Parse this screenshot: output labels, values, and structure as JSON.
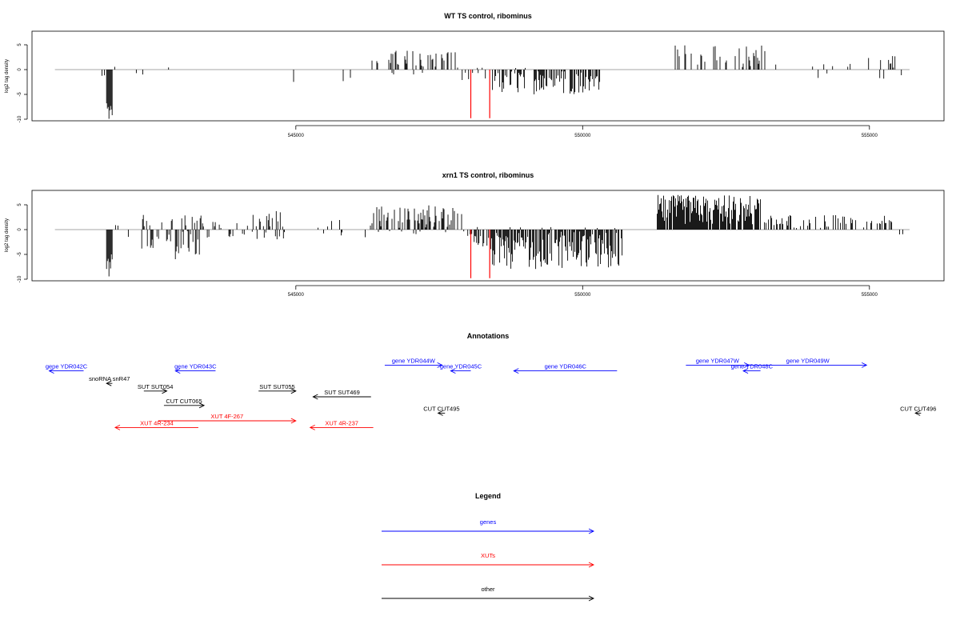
{
  "chart_data": [
    {
      "type": "bar",
      "title": "WT TS control, ribominus",
      "ylabel": "log2 tag density",
      "xlabel": "",
      "xlim": [
        540400,
        556300
      ],
      "ylim": [
        -10,
        8
      ],
      "x_ticks": [
        545000,
        550000,
        555000
      ],
      "x_tick_labels": [
        "545000",
        "550000",
        "555000"
      ],
      "y_ticks": [
        -10,
        -5,
        0,
        5
      ],
      "y_tick_labels": [
        "-10",
        "-5",
        "0",
        "5"
      ],
      "highlight_color": "#ff0000",
      "highlights": [
        {
          "x": 548050,
          "y": -9.8
        },
        {
          "x": 548380,
          "y": -9.8
        }
      ],
      "segments": [
        {
          "from": 540800,
          "to": 541300,
          "density": 0.02,
          "min": -2,
          "max": 0.5
        },
        {
          "from": 541300,
          "to": 541700,
          "density": 0.05,
          "min": -2,
          "max": 1
        },
        {
          "from": 541700,
          "to": 541800,
          "density": 1.0,
          "min": -10,
          "max": -6
        },
        {
          "from": 541800,
          "to": 542600,
          "density": 0.03,
          "min": -2,
          "max": 2
        },
        {
          "from": 542600,
          "to": 544500,
          "density": 0.02,
          "min": -2,
          "max": 2
        },
        {
          "from": 544500,
          "to": 546300,
          "density": 0.02,
          "min": -3,
          "max": 2
        },
        {
          "from": 546300,
          "to": 547900,
          "density": 0.35,
          "min": -1,
          "max": 4
        },
        {
          "from": 547900,
          "to": 548400,
          "density": 0.3,
          "min": -3,
          "max": 0.5
        },
        {
          "from": 548400,
          "to": 550300,
          "density": 0.55,
          "min": -5,
          "max": 0.5
        },
        {
          "from": 550300,
          "to": 551300,
          "density": 0.01,
          "min": -1,
          "max": 1
        },
        {
          "from": 551300,
          "to": 551600,
          "density": 0.03,
          "min": 0,
          "max": 2
        },
        {
          "from": 551600,
          "to": 553200,
          "density": 0.35,
          "min": 0,
          "max": 5
        },
        {
          "from": 553200,
          "to": 555700,
          "density": 0.06,
          "min": -2,
          "max": 3
        }
      ]
    },
    {
      "type": "bar",
      "title": "xrn1 TS control, ribominus",
      "ylabel": "log2 tag density",
      "xlabel": "",
      "xlim": [
        540400,
        556300
      ],
      "ylim": [
        -10,
        8
      ],
      "x_ticks": [
        545000,
        550000,
        555000
      ],
      "x_tick_labels": [
        "545000",
        "550000",
        "555000"
      ],
      "y_ticks": [
        -10,
        -5,
        0,
        5
      ],
      "y_tick_labels": [
        "-10",
        "-5",
        "0",
        "5"
      ],
      "highlight_color": "#ff0000",
      "highlights": [
        {
          "x": 548050,
          "y": -9.8
        },
        {
          "x": 548380,
          "y": -9.8
        }
      ],
      "segments": [
        {
          "from": 540800,
          "to": 541300,
          "density": 0.05,
          "min": -2,
          "max": 0.5
        },
        {
          "from": 541300,
          "to": 541700,
          "density": 0.05,
          "min": -2,
          "max": 1
        },
        {
          "from": 541700,
          "to": 541800,
          "density": 1.0,
          "min": -10,
          "max": -5
        },
        {
          "from": 541800,
          "to": 542300,
          "density": 0.1,
          "min": -2,
          "max": 2
        },
        {
          "from": 542300,
          "to": 543400,
          "density": 0.6,
          "min": -6,
          "max": 3
        },
        {
          "from": 543400,
          "to": 544100,
          "density": 0.2,
          "min": -2,
          "max": 2
        },
        {
          "from": 544100,
          "to": 544800,
          "density": 0.45,
          "min": -2,
          "max": 4
        },
        {
          "from": 544800,
          "to": 546300,
          "density": 0.06,
          "min": -3,
          "max": 2
        },
        {
          "from": 546300,
          "to": 547900,
          "density": 0.6,
          "min": -1,
          "max": 5
        },
        {
          "from": 547900,
          "to": 548400,
          "density": 0.5,
          "min": -4,
          "max": 1
        },
        {
          "from": 548400,
          "to": 550700,
          "density": 0.9,
          "min": -8,
          "max": 0.5
        },
        {
          "from": 550700,
          "to": 551300,
          "density": 0.03,
          "min": -1,
          "max": 1
        },
        {
          "from": 551300,
          "to": 553100,
          "density": 0.9,
          "min": 1,
          "max": 7
        },
        {
          "from": 553100,
          "to": 555400,
          "density": 0.4,
          "min": 0,
          "max": 3
        },
        {
          "from": 555400,
          "to": 555700,
          "density": 0.05,
          "min": -3,
          "max": 1
        }
      ]
    }
  ],
  "annotations": {
    "title": "Annotations",
    "items": [
      {
        "label": "gene YDR042C",
        "category": "genes",
        "from": 541300,
        "to": 540700,
        "row": 0.8
      },
      {
        "label": "gene YDR043C",
        "category": "genes",
        "from": 543600,
        "to": 542900,
        "row": 0.8
      },
      {
        "label": "gene YDR044W",
        "category": "genes",
        "from": 546550,
        "to": 547550,
        "row": 0.2
      },
      {
        "label": "gene YDR045C",
        "category": "genes",
        "from": 548050,
        "to": 547700,
        "row": 0.8
      },
      {
        "label": "gene YDR046C",
        "category": "genes",
        "from": 550600,
        "to": 548800,
        "row": 0.8
      },
      {
        "label": "gene YDR047W",
        "category": "genes",
        "from": 551800,
        "to": 552900,
        "row": 0.2
      },
      {
        "label": "gene YDR048C",
        "category": "genes",
        "from": 553100,
        "to": 552800,
        "row": 0.8
      },
      {
        "label": "gene YDR049W",
        "category": "genes",
        "from": 552900,
        "to": 554950,
        "row": 0.2
      },
      {
        "label": "snoRNA snR47",
        "category": "other",
        "from": 541800,
        "to": 541700,
        "row": 2.1
      },
      {
        "label": "SUT SUT054",
        "category": "other",
        "from": 542350,
        "to": 542750,
        "row": 2.9
      },
      {
        "label": "SUT SUT055",
        "category": "other",
        "from": 544350,
        "to": 545000,
        "row": 2.9
      },
      {
        "label": "SUT SUT469",
        "category": "other",
        "from": 546310,
        "to": 545300,
        "row": 3.5
      },
      {
        "label": "CUT CUT065",
        "category": "other",
        "from": 542700,
        "to": 543400,
        "row": 4.4
      },
      {
        "label": "CUT CUT495",
        "category": "other",
        "from": 547600,
        "to": 547480,
        "row": 5.2
      },
      {
        "label": "CUT CUT496",
        "category": "other",
        "from": 555900,
        "to": 555800,
        "row": 5.2
      },
      {
        "label": "XUT 4F-267",
        "category": "XUTs",
        "from": 542600,
        "to": 545000,
        "row": 6.0
      },
      {
        "label": "XUT 4R-234",
        "category": "XUTs",
        "from": 543300,
        "to": 541850,
        "row": 6.7
      },
      {
        "label": "XUT 4R-237",
        "category": "XUTs",
        "from": 546350,
        "to": 545250,
        "row": 6.7
      }
    ]
  },
  "legend": {
    "title": "Legend",
    "items": [
      {
        "label": "genes",
        "color": "#0000ff"
      },
      {
        "label": "XUTs",
        "color": "#ff0000"
      },
      {
        "label": "other",
        "color": "#000000"
      }
    ]
  }
}
